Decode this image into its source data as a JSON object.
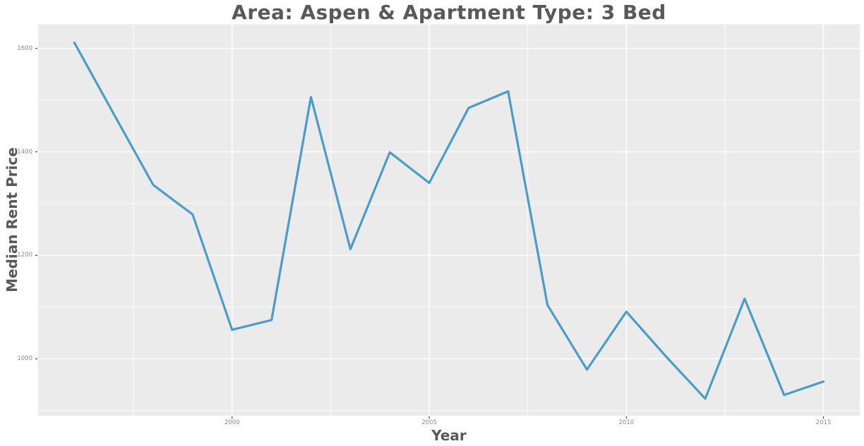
{
  "chart_data": {
    "type": "line",
    "title": "Area: Aspen & Apartment Type: 3 Bed",
    "xlabel": "Year",
    "ylabel": "Median Rent Price",
    "x": [
      1996,
      1997,
      1998,
      1999,
      2000,
      2001,
      2002,
      2003,
      2004,
      2005,
      2006,
      2007,
      2008,
      2009,
      2010,
      2011,
      2012,
      2013,
      2014,
      2015
    ],
    "series": [
      {
        "name": "median-rent-price",
        "values": [
          1611,
          1473,
          1336,
          1279,
          1056,
          1075,
          1506,
          1212,
          1399,
          1340,
          1485,
          1517,
          1104,
          979,
          1091,
          1005,
          923,
          1116,
          930,
          956
        ]
      }
    ],
    "x_ticks": [
      "2000",
      "2005",
      "2010",
      "2015"
    ],
    "x_tick_values": [
      2000,
      2005,
      2010,
      2015
    ],
    "x_minor_tick_values": [
      1997.5,
      2002.5,
      2007.5,
      2012.5
    ],
    "y_ticks": [
      "1000",
      "1200",
      "1400",
      "1600"
    ],
    "y_tick_values": [
      1000,
      1200,
      1400,
      1600
    ],
    "y_minor_tick_values": [
      900,
      1100,
      1300,
      1500
    ],
    "xlim": [
      1995.08,
      2015.92
    ],
    "ylim": [
      890,
      1646.5
    ],
    "grid": "major-and-minor",
    "legend": "none",
    "colors": {
      "line": "#4A9DC9",
      "panel_background": "#EBEBEB",
      "gridline": "#FFFFFF",
      "tick_mark": "#333333",
      "tick_label": "#8A8A8A",
      "title": "#595959",
      "axis_title": "#595959",
      "figure_background": "#FFFFFF"
    }
  }
}
